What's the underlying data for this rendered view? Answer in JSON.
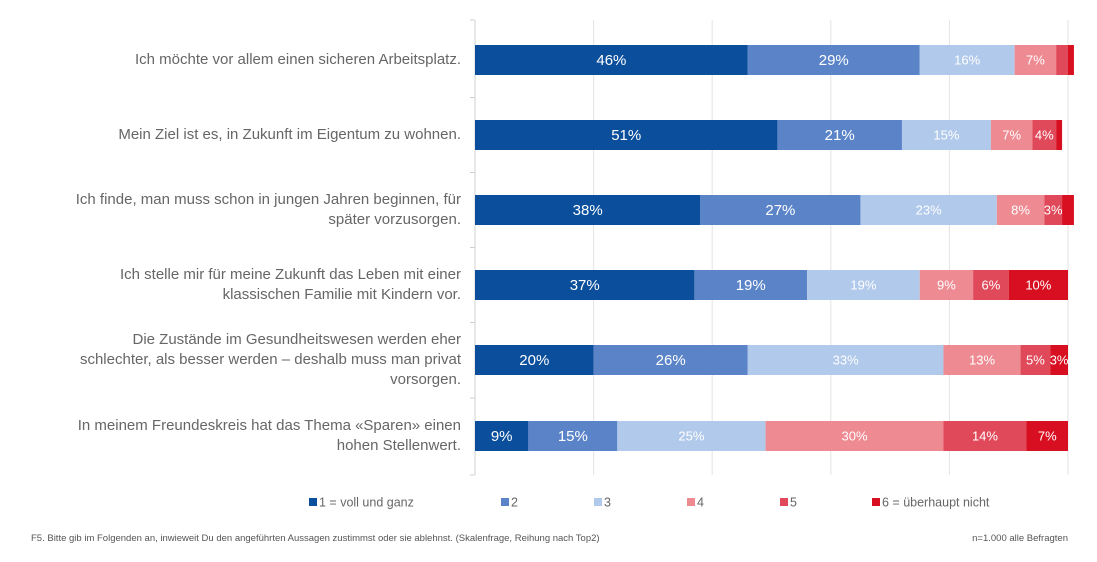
{
  "chart_data": {
    "type": "bar",
    "stacked": true,
    "orientation": "horizontal",
    "categories": [
      "Ich möchte vor allem einen sicheren Arbeitsplatz.",
      "Mein Ziel ist es, in Zukunft im Eigentum zu wohnen.",
      "Ich finde, man muss schon in jungen Jahren beginnen, für später vorzusorgen.",
      "Ich stelle mir für meine Zukunft das Leben mit einer klassischen Familie mit Kindern vor.",
      "Die Zustände im Gesundheitswesen werden eher schlechter, als besser werden – deshalb muss man privat vorsorgen.",
      "In meinem Freundeskreis hat das Thema «Sparen» einen hohen Stellenwert."
    ],
    "category_lines": [
      [
        "Ich möchte vor allem einen sicheren Arbeitsplatz."
      ],
      [
        "Mein Ziel ist es, in Zukunft im Eigentum zu wohnen."
      ],
      [
        "Ich finde, man muss schon in jungen Jahren beginnen, für",
        "später vorzusorgen."
      ],
      [
        "Ich stelle mir für meine Zukunft das Leben mit einer",
        "klassischen Familie mit Kindern vor."
      ],
      [
        "Die Zustände im Gesundheitswesen werden eher",
        "schlechter, als besser werden – deshalb muss man privat",
        "vorsorgen."
      ],
      [
        "In meinem Freundeskreis hat das Thema «Sparen» einen",
        "hohen Stellenwert."
      ]
    ],
    "series": [
      {
        "name": "1 = voll und ganz",
        "color": "#0b4f9c",
        "values": [
          46,
          51,
          38,
          37,
          20,
          9
        ]
      },
      {
        "name": "2",
        "color": "#5b84c8",
        "values": [
          29,
          21,
          27,
          19,
          26,
          15
        ]
      },
      {
        "name": "3",
        "color": "#b1c9ea",
        "values": [
          16,
          15,
          23,
          19,
          33,
          25
        ]
      },
      {
        "name": "4",
        "color": "#ee8b92",
        "values": [
          7,
          7,
          8,
          9,
          13,
          30
        ]
      },
      {
        "name": "5",
        "color": "#e0495a",
        "values": [
          2,
          4,
          3,
          6,
          5,
          14
        ]
      },
      {
        "name": "6 = überhaupt nicht",
        "color": "#d80f20",
        "values": [
          1,
          1,
          2,
          10,
          3,
          7
        ]
      }
    ],
    "data_labels": [
      [
        "46%",
        "29%",
        "16%",
        "7%",
        "",
        ""
      ],
      [
        "51%",
        "21%",
        "15%",
        "7%",
        "4%",
        ""
      ],
      [
        "38%",
        "27%",
        "23%",
        "8%",
        "3%",
        ""
      ],
      [
        "37%",
        "19%",
        "19%",
        "9%",
        "6%",
        "10%"
      ],
      [
        "20%",
        "26%",
        "33%",
        "13%",
        "5%",
        "3%"
      ],
      [
        "9%",
        "15%",
        "25%",
        "30%",
        "14%",
        "7%"
      ]
    ],
    "xlim": [
      0,
      100
    ],
    "grid": true,
    "legend_position": "bottom"
  },
  "footer": {
    "question": "F5. Bitte gib im Folgenden an, inwieweit Du den angeführten Aussagen zustimmst oder sie ablehnst. (Skalenfrage, Reihung nach Top2)",
    "sample": "n=1.000 alle Befragten"
  }
}
